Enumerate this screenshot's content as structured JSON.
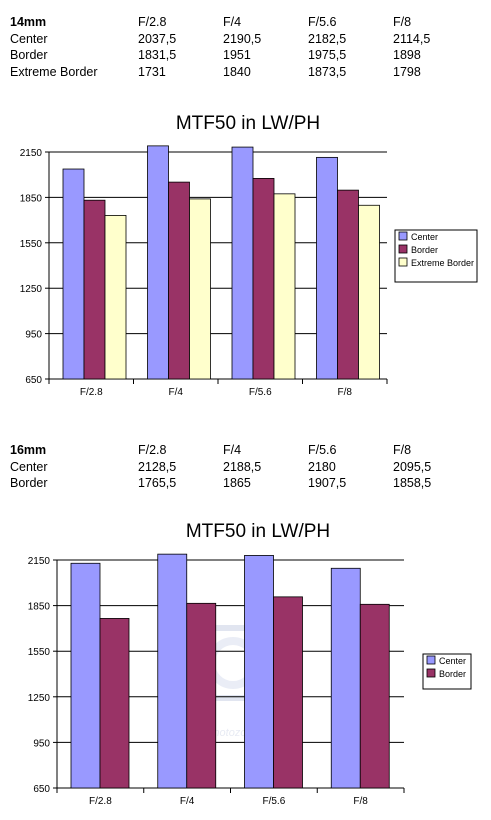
{
  "colors": {
    "center": "#9999ff",
    "border": "#993366",
    "extreme_border": "#ffffcc",
    "grid": "#000000"
  },
  "table1": {
    "header": [
      "14mm",
      "F/2.8",
      "F/4",
      "F/5.6",
      "F/8"
    ],
    "rows": [
      [
        "Center",
        "2037,5",
        "2190,5",
        "2182,5",
        "2114,5"
      ],
      [
        "Border",
        "1831,5",
        "1951",
        "1975,5",
        "1898"
      ],
      [
        "Extreme Border",
        "1731",
        "1840",
        "1873,5",
        "1798"
      ]
    ]
  },
  "table2": {
    "header": [
      "16mm",
      "F/2.8",
      "F/4",
      "F/5.6",
      "F/8"
    ],
    "rows": [
      [
        "Center",
        "2128,5",
        "2188,5",
        "2180",
        "2095,5"
      ],
      [
        "Border",
        "1765,5",
        "1865",
        "1907,5",
        "1858,5"
      ]
    ]
  },
  "watermark": {
    "text": "photozone"
  },
  "chart_data": [
    {
      "type": "bar",
      "title": "MTF50 in LW/PH",
      "categories": [
        "F/2.8",
        "F/4",
        "F/5.6",
        "F/8"
      ],
      "series": [
        {
          "name": "Center",
          "values": [
            2037.5,
            2190.5,
            2182.5,
            2114.5
          ]
        },
        {
          "name": "Border",
          "values": [
            1831.5,
            1951,
            1975.5,
            1898
          ]
        },
        {
          "name": "Extreme Border",
          "values": [
            1731,
            1840,
            1873.5,
            1798
          ]
        }
      ],
      "ylim": [
        650,
        2150
      ],
      "yticks": [
        "650",
        "950",
        "1250",
        "1550",
        "1850",
        "2150"
      ],
      "grid": true,
      "legend": "right"
    },
    {
      "type": "bar",
      "title": "MTF50 in LW/PH",
      "categories": [
        "F/2.8",
        "F/4",
        "F/5.6",
        "F/8"
      ],
      "series": [
        {
          "name": "Center",
          "values": [
            2128.5,
            2188.5,
            2180,
            2095.5
          ]
        },
        {
          "name": "Border",
          "values": [
            1765.5,
            1865,
            1907.5,
            1858.5
          ]
        }
      ],
      "ylim": [
        650,
        2150
      ],
      "yticks": [
        "650",
        "950",
        "1250",
        "1550",
        "1850",
        "2150"
      ],
      "grid": true,
      "legend": "right"
    }
  ]
}
